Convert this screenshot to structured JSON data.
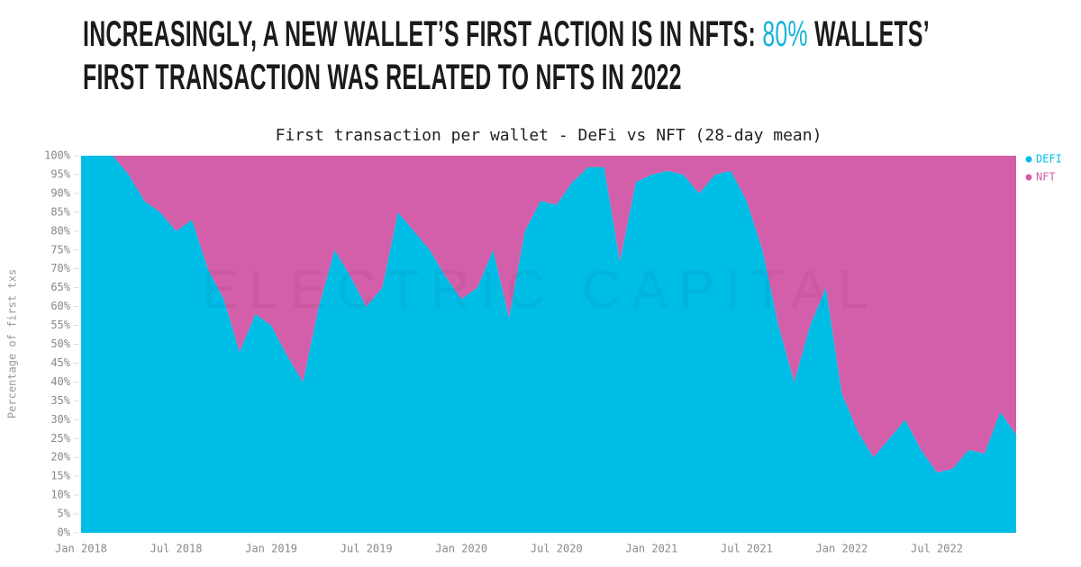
{
  "headline": [
    "INCREASINGLY, A NEW WALLET’S FIRST ACTION IS IN NFTS: ",
    "80%",
    " WALLETS’",
    "FIRST TRANSACTION WAS RELATED TO NFTS IN 2022"
  ],
  "chart_data": {
    "type": "stacked_area",
    "title": "First transaction per wallet - DeFi vs NFT (28-day mean)",
    "y_label": "Percentage of first txs",
    "watermark": "ELECTRIC CAPITAL",
    "categories": [
      "Jan 2018",
      null,
      null,
      null,
      null,
      null,
      "Jul 2018",
      null,
      null,
      null,
      null,
      null,
      "Jan 2019",
      null,
      null,
      null,
      null,
      null,
      "Jul 2019",
      null,
      null,
      null,
      null,
      null,
      "Jan 2020",
      null,
      null,
      null,
      null,
      null,
      "Jul 2020",
      null,
      null,
      null,
      null,
      null,
      "Jan 2021",
      null,
      null,
      null,
      null,
      null,
      "Jul 2021",
      null,
      null,
      null,
      null,
      null,
      "Jan 2022",
      null,
      null,
      null,
      null,
      null,
      "Jul 2022",
      null,
      null,
      null,
      null,
      null
    ],
    "series": [
      {
        "name": "DEFI",
        "color": "#00bde6",
        "values": [
          100,
          100,
          100,
          95,
          88,
          85,
          80,
          83,
          70,
          62,
          48,
          58,
          55,
          47,
          40,
          60,
          75,
          68,
          60,
          65,
          85,
          80,
          75,
          68,
          62,
          65,
          75,
          57,
          80,
          88,
          87,
          93,
          97,
          97,
          72,
          93,
          95,
          96,
          95,
          90,
          95,
          96,
          88,
          75,
          55,
          40,
          55,
          65,
          37,
          27,
          20,
          25,
          30,
          22,
          16,
          17,
          22,
          21,
          32,
          26
        ]
      },
      {
        "name": "NFT",
        "color": "#d35ea9",
        "values": [
          0,
          0,
          0,
          5,
          12,
          15,
          20,
          17,
          30,
          38,
          52,
          42,
          45,
          53,
          60,
          40,
          25,
          32,
          40,
          35,
          15,
          20,
          25,
          32,
          38,
          35,
          25,
          43,
          20,
          12,
          13,
          7,
          3,
          3,
          28,
          7,
          5,
          4,
          5,
          10,
          5,
          4,
          12,
          25,
          45,
          60,
          45,
          35,
          63,
          73,
          80,
          75,
          70,
          78,
          84,
          83,
          78,
          79,
          68,
          74
        ]
      }
    ],
    "ylim": [
      0,
      100
    ],
    "yticks": [
      {
        "value": 0,
        "label": "0%"
      },
      {
        "value": 5,
        "label": "5%"
      },
      {
        "value": 10,
        "label": "10%"
      },
      {
        "value": 15,
        "label": "15%"
      },
      {
        "value": 20,
        "label": "20%"
      },
      {
        "value": 25,
        "label": "25%"
      },
      {
        "value": 30,
        "label": "30%"
      },
      {
        "value": 35,
        "label": "35%"
      },
      {
        "value": 40,
        "label": "40%"
      },
      {
        "value": 45,
        "label": "45%"
      },
      {
        "value": 50,
        "label": "50%"
      },
      {
        "value": 55,
        "label": "55%"
      },
      {
        "value": 60,
        "label": "60%"
      },
      {
        "value": 65,
        "label": "65%"
      },
      {
        "value": 70,
        "label": "70%"
      },
      {
        "value": 75,
        "label": "75%"
      },
      {
        "value": 80,
        "label": "80%"
      },
      {
        "value": 85,
        "label": "85%"
      },
      {
        "value": 90,
        "label": "90%"
      },
      {
        "value": 95,
        "label": "95%"
      },
      {
        "value": 100,
        "label": "100%"
      }
    ],
    "legend": "top-right"
  }
}
